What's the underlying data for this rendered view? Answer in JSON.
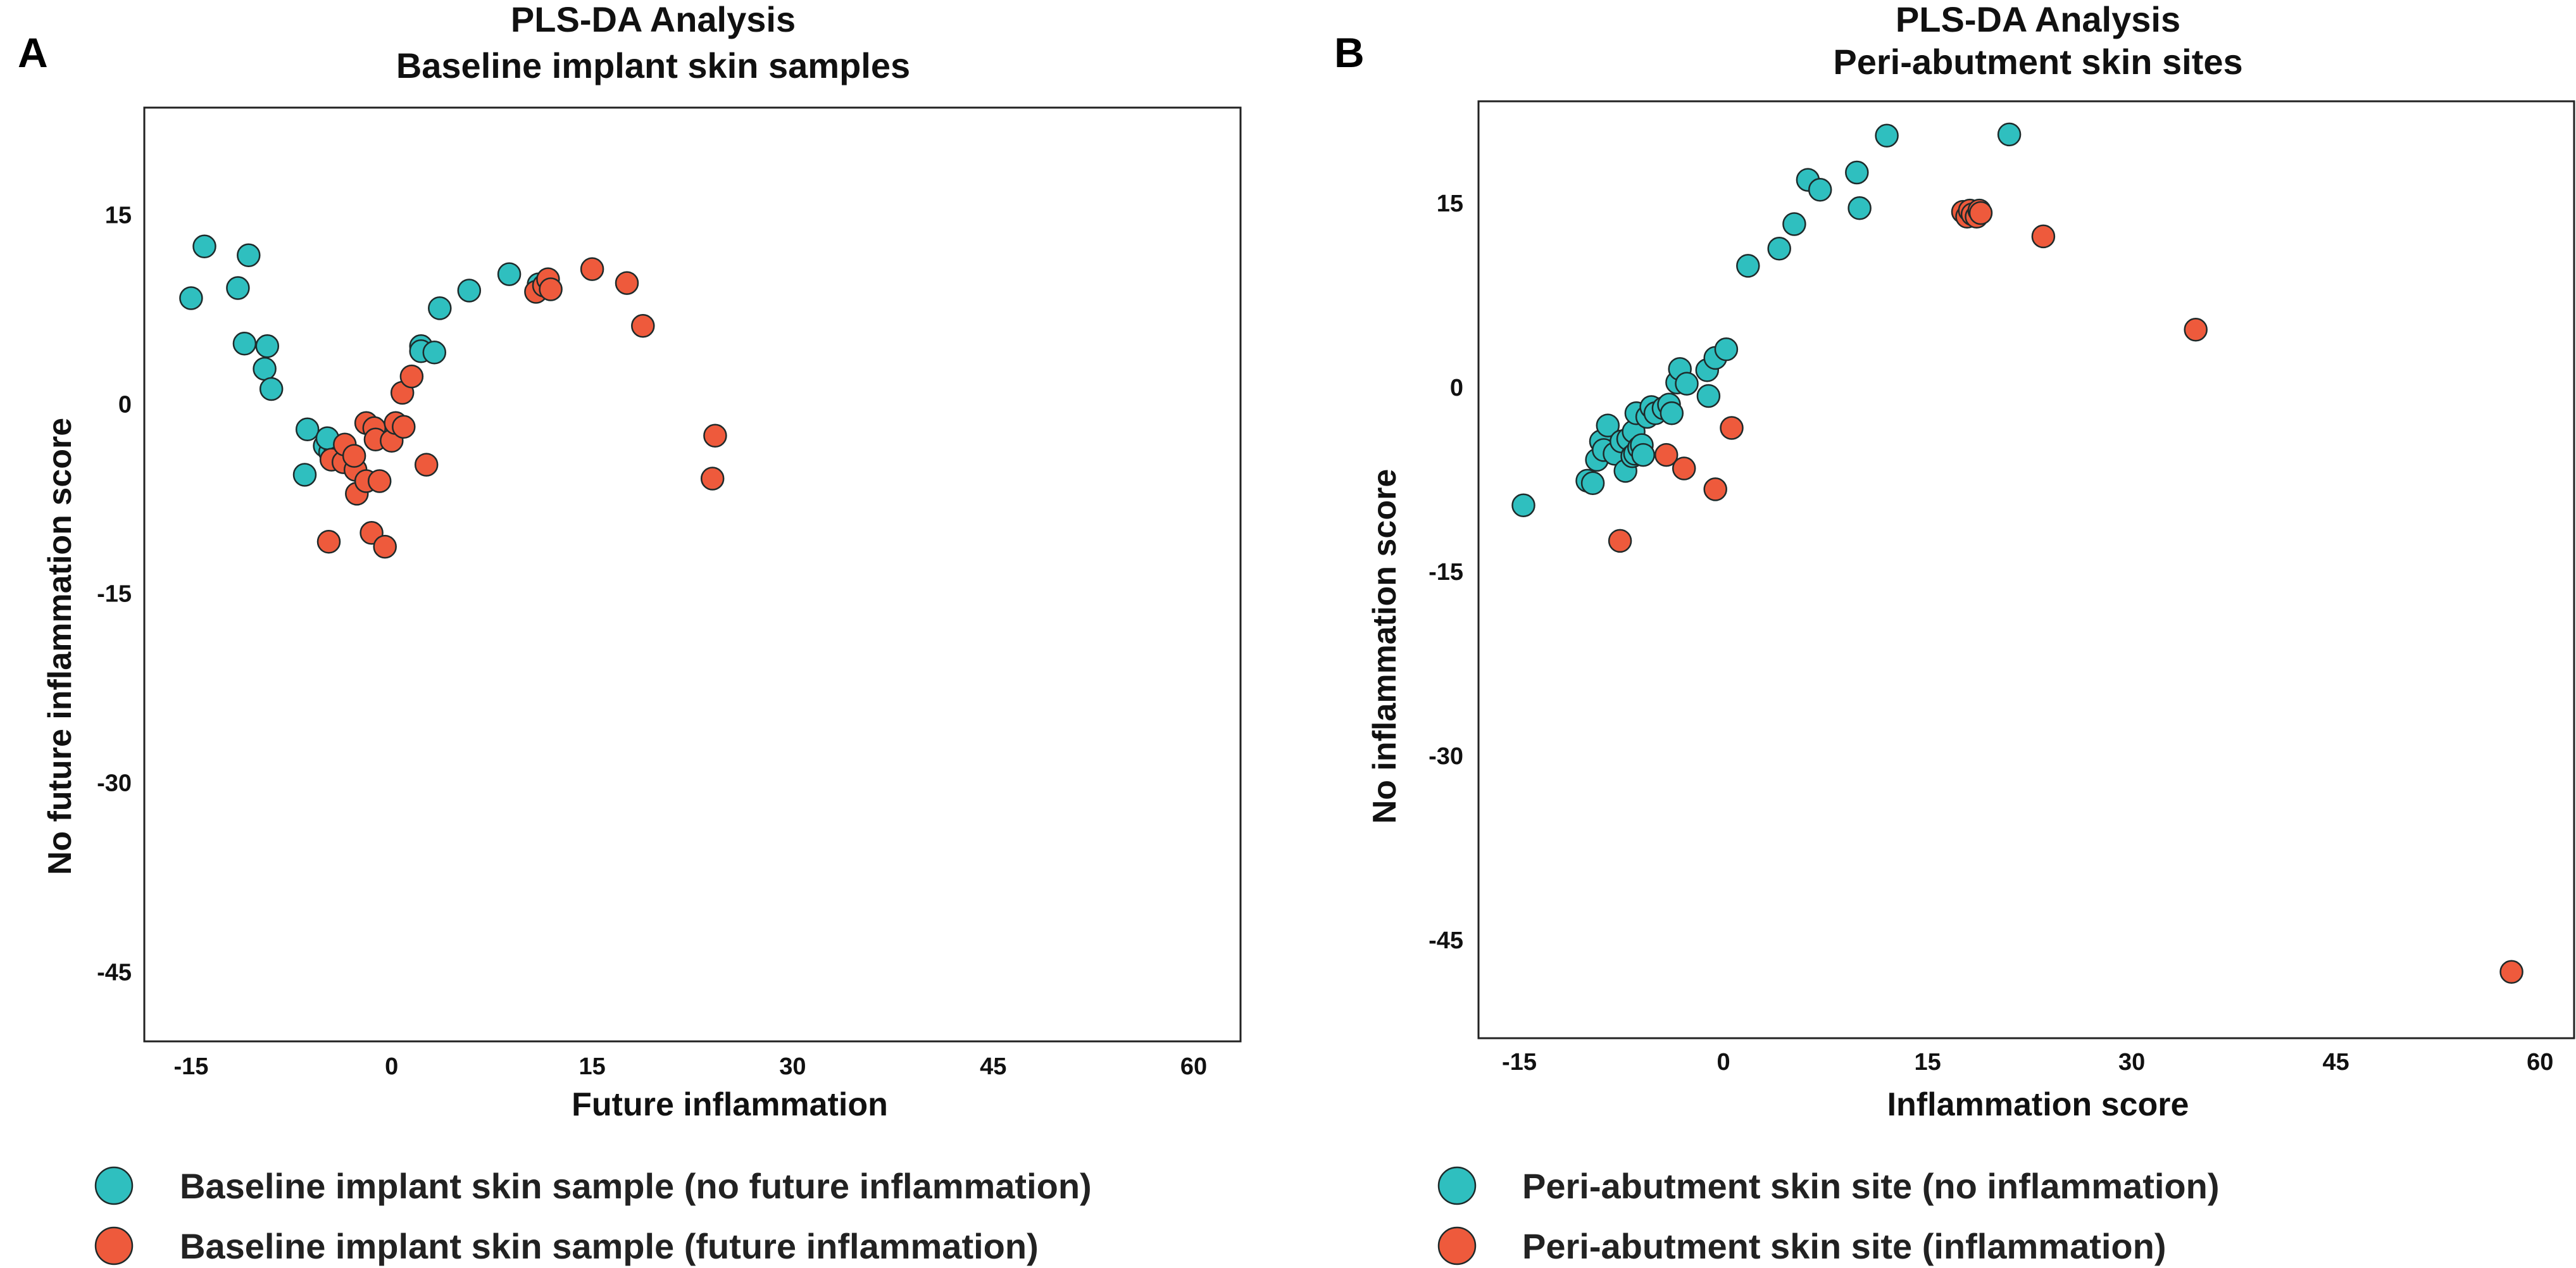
{
  "colors": {
    "teal": "#2fbfbf",
    "red": "#ee5a3c"
  },
  "chart_data": [
    {
      "panel": "A",
      "type": "scatter",
      "title": "PLS-DA Analysis",
      "subtitle": "Baseline implant skin samples",
      "xlabel": "Future inflammation",
      "ylabel": "No future inflammation score",
      "xlim": [
        -18.5,
        63.5
      ],
      "ylim": [
        -50.5,
        23.5
      ],
      "xticks": [
        -15,
        0,
        15,
        30,
        45,
        60
      ],
      "yticks": [
        15,
        0,
        -15,
        -30,
        -45
      ],
      "legend": [
        {
          "label": "Baseline implant skin sample (no future inflammation)",
          "color": "#2fbfbf"
        },
        {
          "label": "Baseline implant skin sample (future inflammation)",
          "color": "#ee5a3c"
        }
      ],
      "series": [
        {
          "name": "Baseline implant skin sample (no future inflammation)",
          "color": "#2fbfbf",
          "points": [
            [
              -15,
              8.4
            ],
            [
              -14,
              12.5
            ],
            [
              -11.5,
              9.2
            ],
            [
              -10.7,
              11.8
            ],
            [
              -11,
              4.8
            ],
            [
              -9.3,
              4.6
            ],
            [
              -9.5,
              2.8
            ],
            [
              -9,
              1.2
            ],
            [
              -6.5,
              -5.6
            ],
            [
              -6.3,
              -2
            ],
            [
              -5,
              -3.3
            ],
            [
              -4.6,
              -3.8
            ],
            [
              -4.2,
              -3.5
            ],
            [
              -3.9,
              -4.2
            ],
            [
              -4.8,
              -2.7
            ],
            [
              2.2,
              4.6
            ],
            [
              2.2,
              4.2
            ],
            [
              3.2,
              4.1
            ],
            [
              3.6,
              7.6
            ],
            [
              5.8,
              9
            ],
            [
              8.8,
              10.3
            ],
            [
              11,
              9.5
            ]
          ]
        },
        {
          "name": "Baseline implant skin sample (future inflammation)",
          "color": "#ee5a3c",
          "points": [
            [
              -4.7,
              -10.9
            ],
            [
              -4.5,
              -4.4
            ],
            [
              -3.6,
              -4.6
            ],
            [
              -3.5,
              -3.2
            ],
            [
              -2.7,
              -5.2
            ],
            [
              -2.6,
              -7.1
            ],
            [
              -2.8,
              -4.1
            ],
            [
              -1.9,
              -1.5
            ],
            [
              -1.9,
              -6.1
            ],
            [
              -1.5,
              -10.2
            ],
            [
              -1.3,
              -1.9
            ],
            [
              -1.2,
              -2.8
            ],
            [
              -0.9,
              -6.1
            ],
            [
              -0.5,
              -11.3
            ],
            [
              0,
              -2.9
            ],
            [
              0.3,
              -1.5
            ],
            [
              0.9,
              -1.8
            ],
            [
              0.8,
              0.9
            ],
            [
              1.5,
              2.2
            ],
            [
              2.6,
              -4.8
            ],
            [
              10.8,
              8.9
            ],
            [
              11.4,
              9.4
            ],
            [
              11.7,
              9.9
            ],
            [
              11.9,
              9.1
            ],
            [
              15,
              10.7
            ],
            [
              17.6,
              9.6
            ],
            [
              18.8,
              6.2
            ],
            [
              24.2,
              -2.5
            ],
            [
              24,
              -5.9
            ]
          ]
        }
      ]
    },
    {
      "panel": "B",
      "type": "scatter",
      "title": "PLS-DA Analysis",
      "subtitle": "Peri-abutment skin sites",
      "xlabel": "Inflammation score",
      "ylabel": "No inflammation score",
      "xlim": [
        -18,
        62.5
      ],
      "ylim": [
        -53,
        23.3
      ],
      "xticks": [
        -15,
        0,
        15,
        30,
        45,
        60
      ],
      "yticks": [
        15,
        0,
        -15,
        -30,
        -45
      ],
      "legend": [
        {
          "label": "Peri-abutment skin site (no inflammation)",
          "color": "#2fbfbf"
        },
        {
          "label": "Peri-abutment skin site (inflammation)",
          "color": "#ee5a3c"
        }
      ],
      "series": [
        {
          "name": "Peri-abutment skin site (no inflammation)",
          "color": "#2fbfbf",
          "points": [
            [
              -14.7,
              -9.6
            ],
            [
              -10,
              -7.6
            ],
            [
              -9.6,
              -7.8
            ],
            [
              -9.3,
              -5.9
            ],
            [
              -9,
              -4.4
            ],
            [
              -8.8,
              -5.1
            ],
            [
              -8.5,
              -3.1
            ],
            [
              -8,
              -5.4
            ],
            [
              -7.5,
              -4.4
            ],
            [
              -7.2,
              -6.8
            ],
            [
              -7,
              -4.2
            ],
            [
              -6.7,
              -5.6
            ],
            [
              -6.6,
              -3.6
            ],
            [
              -6.5,
              -5.4
            ],
            [
              -6.2,
              -4.9
            ],
            [
              -6.4,
              -2.1
            ],
            [
              -6,
              -4.7
            ],
            [
              -5.9,
              -5.5
            ],
            [
              -5.6,
              -2.4
            ],
            [
              -5.3,
              -1.6
            ],
            [
              -5,
              -2.1
            ],
            [
              -4.4,
              -1.7
            ],
            [
              -4,
              -1.4
            ],
            [
              -3.8,
              -2.1
            ],
            [
              -3.4,
              0.4
            ],
            [
              -3.2,
              1.5
            ],
            [
              -2.7,
              0.3
            ],
            [
              -1.1,
              -0.7
            ],
            [
              -1.2,
              1.4
            ],
            [
              -0.6,
              2.4
            ],
            [
              0.2,
              3.1
            ],
            [
              1.8,
              9.9
            ],
            [
              4.1,
              11.3
            ],
            [
              5.2,
              13.3
            ],
            [
              6.2,
              16.9
            ],
            [
              7.1,
              16.1
            ],
            [
              9.8,
              17.5
            ],
            [
              10,
              14.6
            ],
            [
              12,
              20.5
            ],
            [
              21,
              20.6
            ]
          ]
        },
        {
          "name": "Peri-abutment skin site (inflammation)",
          "color": "#ee5a3c",
          "points": [
            [
              -7.6,
              -12.5
            ],
            [
              -4.2,
              -5.5
            ],
            [
              -2.9,
              -6.6
            ],
            [
              -0.6,
              -8.3
            ],
            [
              0.6,
              -3.3
            ],
            [
              17.6,
              14.3
            ],
            [
              17.9,
              13.9
            ],
            [
              18.1,
              14.4
            ],
            [
              18.3,
              14.1
            ],
            [
              18.6,
              13.9
            ],
            [
              18.8,
              14.4
            ],
            [
              18.9,
              14.2
            ],
            [
              23.5,
              12.3
            ],
            [
              34.7,
              4.7
            ],
            [
              57.9,
              -47.6
            ]
          ]
        }
      ]
    }
  ]
}
